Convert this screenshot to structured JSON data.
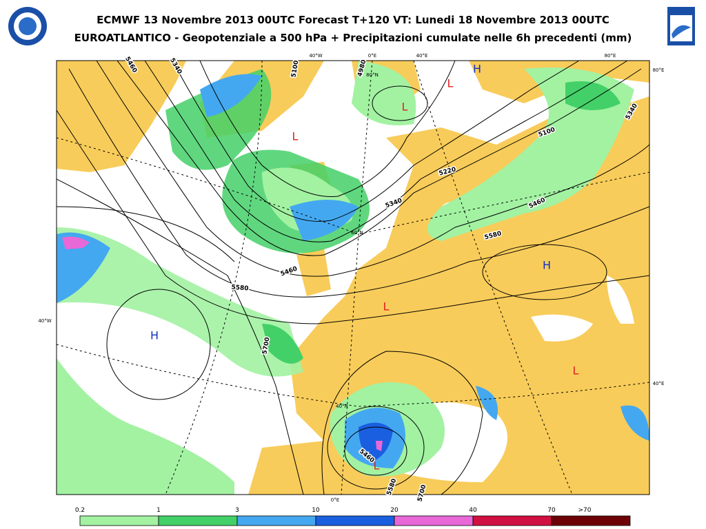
{
  "header": {
    "title": "ECMWF 13 Novembre 2013 00UTC Forecast T+120 VT: Lunedi 18 Novembre 2013 00UTC",
    "subtitle": "EUROATLANTICO - Geopotenziale a 500 hPa + Precipitazioni cumulate nelle 6h precedenti (mm)"
  },
  "map": {
    "grid_labels": [
      "40°W",
      "0°E",
      "40°E",
      "80°E",
      "80°E",
      "40°E",
      "40°W",
      "0°E",
      "80°N",
      "60°N",
      "40°N"
    ],
    "contour_labels": [
      "5460",
      "5340",
      "5100",
      "4980",
      "5100",
      "5220",
      "5340",
      "5460",
      "5580",
      "5340",
      "5460",
      "5580",
      "5700",
      "5460",
      "5580",
      "5700"
    ],
    "pressure_centers": [
      {
        "label": "H",
        "color": "#1030c0"
      },
      {
        "label": "H",
        "color": "#1030c0"
      },
      {
        "label": "H",
        "color": "#1030c0"
      },
      {
        "label": "L",
        "color": "#e02020"
      },
      {
        "label": "L",
        "color": "#e02020"
      },
      {
        "label": "L",
        "color": "#e02020"
      },
      {
        "label": "L",
        "color": "#e02020"
      },
      {
        "label": "L",
        "color": "#e02020"
      },
      {
        "label": "L",
        "color": "#e02020"
      }
    ]
  },
  "legend": {
    "ticks": [
      "0.2",
      "1",
      "3",
      "10",
      "20",
      "40",
      "70",
      ">70"
    ],
    "colors": [
      "#a2f2a2",
      "#44d068",
      "#44a8f0",
      "#1a5fe0",
      "#e868d8",
      "#d01040",
      "#6e0008"
    ]
  }
}
